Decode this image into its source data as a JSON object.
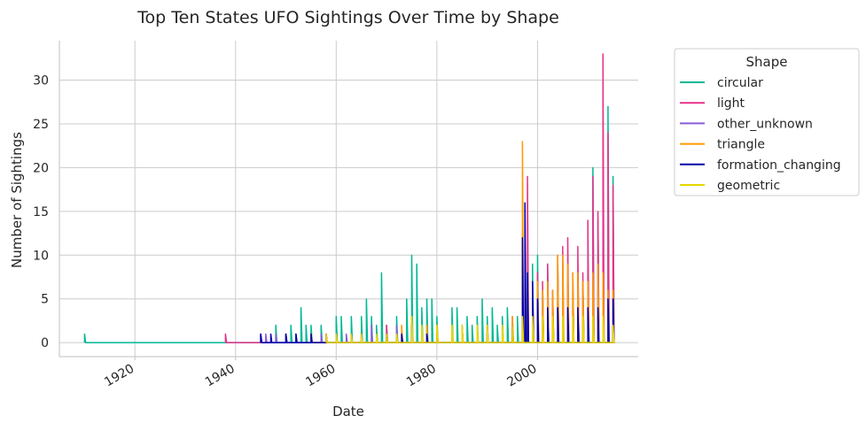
{
  "chart_data": {
    "type": "line",
    "title": "Top Ten States UFO Sightings Over Time by Shape",
    "xlabel": "Date",
    "ylabel": "Number of Sightings",
    "xlim": [
      1905,
      2020
    ],
    "ylim": [
      -1.6,
      34.5
    ],
    "x_ticks": [
      1920,
      1940,
      1960,
      1980,
      2000
    ],
    "x_tick_labels": [
      "1920",
      "1940",
      "1960",
      "1980",
      "2000"
    ],
    "y_ticks": [
      0,
      5,
      10,
      15,
      20,
      25,
      30
    ],
    "y_tick_labels": [
      "0",
      "5",
      "10",
      "15",
      "20",
      "25",
      "30"
    ],
    "grid": true,
    "legend": {
      "title": "Shape",
      "placement": "outside-right"
    },
    "series": [
      {
        "name": "circular",
        "color": "#00b894",
        "spikes": [
          [
            1910,
            1
          ],
          [
            1945,
            1
          ],
          [
            1948,
            2
          ],
          [
            1950,
            1
          ],
          [
            1951,
            2
          ],
          [
            1953,
            4
          ],
          [
            1954,
            2
          ],
          [
            1955,
            2
          ],
          [
            1957,
            2
          ],
          [
            1960,
            3
          ],
          [
            1961,
            3
          ],
          [
            1963,
            3
          ],
          [
            1965,
            3
          ],
          [
            1966,
            5
          ],
          [
            1967,
            3
          ],
          [
            1968,
            2
          ],
          [
            1969,
            8
          ],
          [
            1970,
            2
          ],
          [
            1972,
            3
          ],
          [
            1974,
            5
          ],
          [
            1975,
            10
          ],
          [
            1976,
            9
          ],
          [
            1977,
            4
          ],
          [
            1978,
            5
          ],
          [
            1979,
            5
          ],
          [
            1980,
            3
          ],
          [
            1983,
            4
          ],
          [
            1984,
            4
          ],
          [
            1985,
            2
          ],
          [
            1986,
            3
          ],
          [
            1987,
            2
          ],
          [
            1988,
            3
          ],
          [
            1989,
            5
          ],
          [
            1990,
            3
          ],
          [
            1991,
            4
          ],
          [
            1992,
            2
          ],
          [
            1993,
            3
          ],
          [
            1994,
            4
          ],
          [
            1995,
            2
          ],
          [
            1996,
            3
          ],
          [
            1997,
            3
          ],
          [
            1998,
            6
          ],
          [
            1999,
            9
          ],
          [
            2000,
            10
          ],
          [
            2001,
            6
          ],
          [
            2002,
            9
          ],
          [
            2003,
            5
          ],
          [
            2004,
            9
          ],
          [
            2005,
            5
          ],
          [
            2006,
            7
          ],
          [
            2007,
            6
          ],
          [
            2008,
            8
          ],
          [
            2009,
            7
          ],
          [
            2010,
            8
          ],
          [
            2011,
            20
          ],
          [
            2012,
            14
          ],
          [
            2013,
            15
          ],
          [
            2014,
            27
          ],
          [
            2015,
            19
          ]
        ]
      },
      {
        "name": "light",
        "color": "#e8318a",
        "spikes": [
          [
            1938,
            1
          ],
          [
            1945,
            1
          ],
          [
            1950,
            1
          ],
          [
            1955,
            1
          ],
          [
            1958,
            1
          ],
          [
            1965,
            1
          ],
          [
            1970,
            2
          ],
          [
            1975,
            2
          ],
          [
            1980,
            2
          ],
          [
            1985,
            2
          ],
          [
            1990,
            2
          ],
          [
            1995,
            3
          ],
          [
            1997,
            5
          ],
          [
            1998,
            19
          ],
          [
            1999,
            7
          ],
          [
            2000,
            8
          ],
          [
            2001,
            7
          ],
          [
            2002,
            9
          ],
          [
            2003,
            6
          ],
          [
            2004,
            10
          ],
          [
            2005,
            11
          ],
          [
            2006,
            12
          ],
          [
            2007,
            8
          ],
          [
            2008,
            11
          ],
          [
            2009,
            8
          ],
          [
            2010,
            14
          ],
          [
            2011,
            19
          ],
          [
            2012,
            15
          ],
          [
            2013,
            33
          ],
          [
            2014,
            24
          ],
          [
            2015,
            18
          ]
        ]
      },
      {
        "name": "other_unknown",
        "color": "#8a5cd6",
        "spikes": [
          [
            1946,
            1
          ],
          [
            1948,
            1
          ],
          [
            1950,
            1
          ],
          [
            1952,
            1
          ],
          [
            1955,
            1
          ],
          [
            1957,
            1
          ],
          [
            1960,
            1
          ],
          [
            1962,
            1
          ],
          [
            1965,
            1
          ],
          [
            1967,
            2
          ],
          [
            1970,
            1
          ],
          [
            1972,
            2
          ],
          [
            1975,
            2
          ],
          [
            1978,
            1
          ],
          [
            1980,
            1
          ],
          [
            1985,
            1
          ],
          [
            1990,
            2
          ],
          [
            1995,
            2
          ],
          [
            1998,
            4
          ],
          [
            2000,
            4
          ],
          [
            2002,
            4
          ],
          [
            2004,
            5
          ],
          [
            2006,
            5
          ],
          [
            2008,
            6
          ],
          [
            2010,
            5
          ],
          [
            2012,
            6
          ],
          [
            2014,
            5
          ]
        ]
      },
      {
        "name": "triangle",
        "color": "#ff9a00",
        "spikes": [
          [
            1955,
            1
          ],
          [
            1960,
            1
          ],
          [
            1965,
            1
          ],
          [
            1970,
            1
          ],
          [
            1973,
            2
          ],
          [
            1975,
            3
          ],
          [
            1978,
            2
          ],
          [
            1980,
            2
          ],
          [
            1983,
            2
          ],
          [
            1985,
            2
          ],
          [
            1988,
            2
          ],
          [
            1990,
            2
          ],
          [
            1993,
            2
          ],
          [
            1995,
            3
          ],
          [
            1997,
            23
          ],
          [
            1998,
            6
          ],
          [
            1999,
            5
          ],
          [
            2000,
            7
          ],
          [
            2001,
            6
          ],
          [
            2002,
            7
          ],
          [
            2003,
            6
          ],
          [
            2004,
            10
          ],
          [
            2005,
            10
          ],
          [
            2006,
            9
          ],
          [
            2007,
            8
          ],
          [
            2008,
            8
          ],
          [
            2009,
            7
          ],
          [
            2010,
            7
          ],
          [
            2011,
            8
          ],
          [
            2012,
            9
          ],
          [
            2013,
            8
          ],
          [
            2014,
            6
          ],
          [
            2015,
            6
          ]
        ]
      },
      {
        "name": "formation_changing",
        "color": "#0000aa",
        "spikes": [
          [
            1945,
            1
          ],
          [
            1947,
            1
          ],
          [
            1950,
            1
          ],
          [
            1952,
            1
          ],
          [
            1955,
            1
          ],
          [
            1958,
            1
          ],
          [
            1960,
            1
          ],
          [
            1963,
            1
          ],
          [
            1965,
            1
          ],
          [
            1968,
            1
          ],
          [
            1970,
            1
          ],
          [
            1973,
            1
          ],
          [
            1975,
            2
          ],
          [
            1978,
            1
          ],
          [
            1980,
            1
          ],
          [
            1985,
            1
          ],
          [
            1990,
            1
          ],
          [
            1995,
            2
          ],
          [
            1997,
            12
          ],
          [
            1997.5,
            16
          ],
          [
            1998,
            8
          ],
          [
            1999,
            7
          ],
          [
            2000,
            5
          ],
          [
            2002,
            4
          ],
          [
            2004,
            4
          ],
          [
            2006,
            4
          ],
          [
            2008,
            4
          ],
          [
            2010,
            4
          ],
          [
            2012,
            4
          ],
          [
            2014,
            5
          ],
          [
            2015,
            5
          ]
        ]
      },
      {
        "name": "geometric",
        "color": "#e6d800",
        "spikes": [
          [
            1958,
            1
          ],
          [
            1960,
            1
          ],
          [
            1963,
            1
          ],
          [
            1965,
            1
          ],
          [
            1968,
            1
          ],
          [
            1970,
            1
          ],
          [
            1972,
            1
          ],
          [
            1975,
            3
          ],
          [
            1977,
            2
          ],
          [
            1980,
            2
          ],
          [
            1983,
            2
          ],
          [
            1985,
            2
          ],
          [
            1988,
            2
          ],
          [
            1990,
            2
          ],
          [
            1993,
            2
          ],
          [
            1995,
            2
          ],
          [
            1997,
            3
          ],
          [
            1999,
            3
          ],
          [
            2001,
            3
          ],
          [
            2003,
            3
          ],
          [
            2005,
            3
          ],
          [
            2007,
            3
          ],
          [
            2009,
            3
          ],
          [
            2011,
            3
          ],
          [
            2013,
            3
          ],
          [
            2015,
            2
          ]
        ]
      }
    ]
  }
}
